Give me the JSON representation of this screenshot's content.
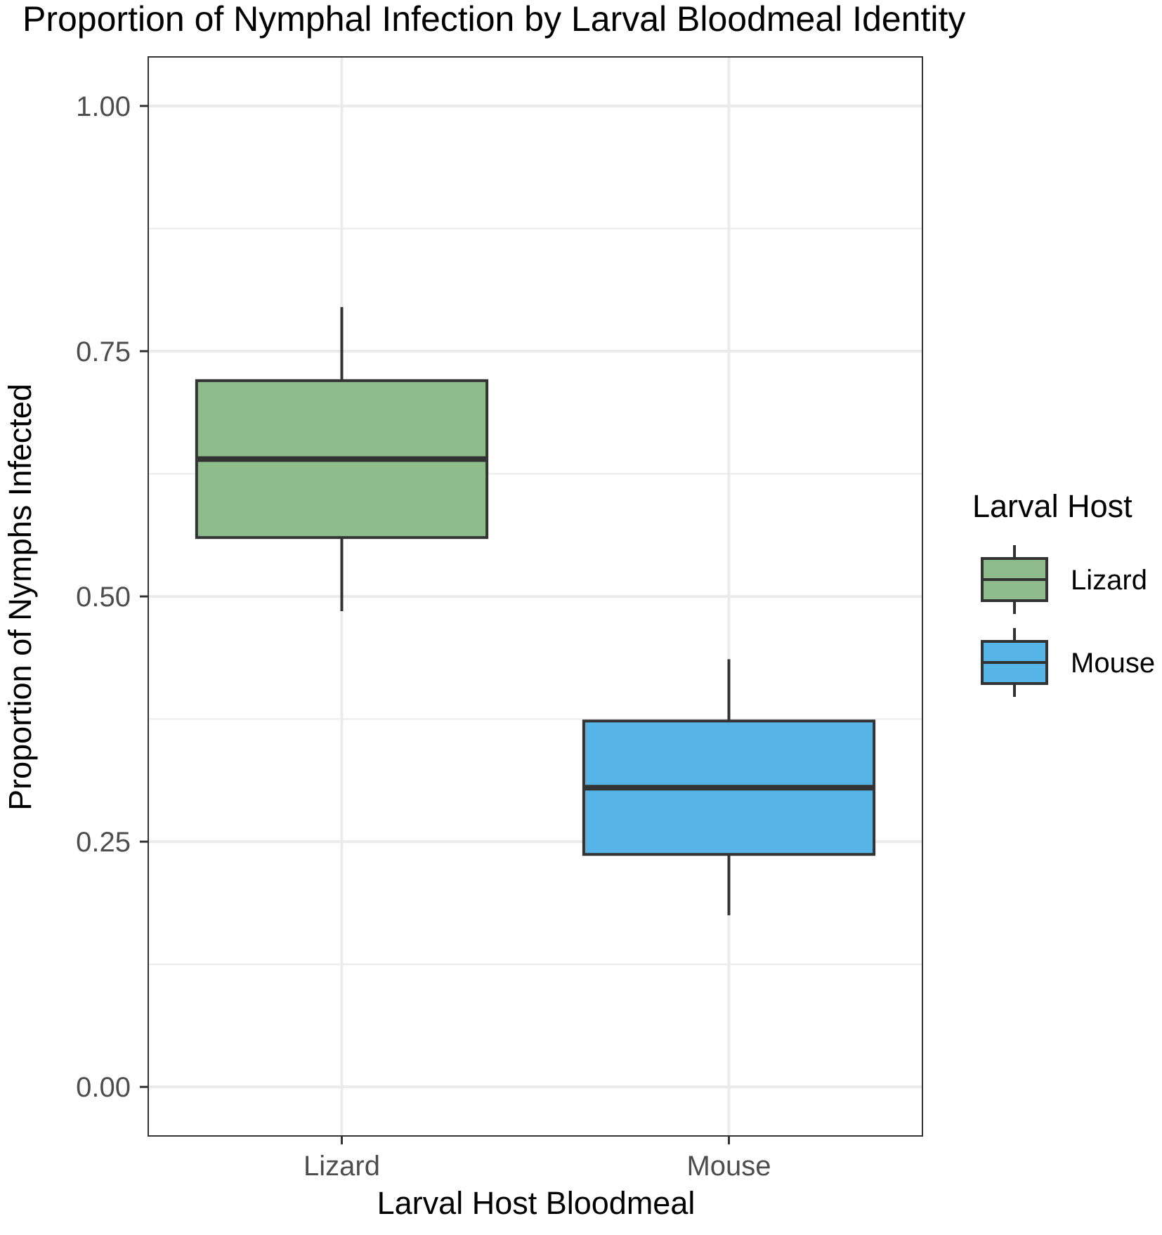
{
  "chart_data": {
    "type": "boxplot",
    "title": "Proportion of Nymphal Infection by Larval Bloodmeal Identity",
    "xlabel": "Larval Host Bloodmeal",
    "ylabel": "Proportion of Nymphs Infected",
    "ylim": [
      -0.05,
      1.05
    ],
    "yticks": [
      0.0,
      0.25,
      0.5,
      0.75,
      1.0
    ],
    "ytick_labels": [
      "0.00",
      "0.25",
      "0.50",
      "0.75",
      "1.00"
    ],
    "minor_yticks": [
      0.125,
      0.375,
      0.625,
      0.875
    ],
    "categories": [
      "Lizard",
      "Mouse"
    ],
    "series": [
      {
        "name": "Lizard",
        "color": "#8fbc8b",
        "whisker_low": 0.485,
        "q1": 0.56,
        "median": 0.64,
        "q3": 0.72,
        "whisker_high": 0.795
      },
      {
        "name": "Mouse",
        "color": "#56b4e6",
        "whisker_low": 0.175,
        "q1": 0.237,
        "median": 0.305,
        "q3": 0.373,
        "whisker_high": 0.436
      }
    ],
    "legend": {
      "title": "Larval Host",
      "position": "right"
    },
    "grid": true,
    "theme": {
      "outline": "#333333",
      "grid_color": "#ebebeb",
      "panel_border": "#333333"
    }
  }
}
